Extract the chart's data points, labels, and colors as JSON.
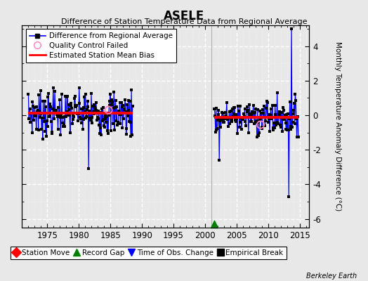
{
  "title": "ASELE",
  "subtitle": "Difference of Station Temperature Data from Regional Average",
  "ylabel": "Monthly Temperature Anomaly Difference (°C)",
  "xlabel_ticks": [
    1975,
    1980,
    1985,
    1990,
    1995,
    2000,
    2005,
    2010,
    2015
  ],
  "ylim": [
    -6.5,
    5.2
  ],
  "yticks": [
    -6,
    -4,
    -2,
    0,
    2,
    4
  ],
  "xlim": [
    1971.0,
    2016.5
  ],
  "bg_color": "#e8e8e8",
  "plot_bg_color": "#e8e8e8",
  "grid_color": "#ffffff",
  "segment1_bias": 0.12,
  "segment2_bias": -0.12,
  "t1_start": 1972.0,
  "t1_end": 1988.5,
  "t2_start": 2001.5,
  "t2_end": 2014.8,
  "record_gap_x": 2001.5,
  "record_gap_y": -6.3,
  "vline_x": 2001.0,
  "vline_color": "#b0b0b0",
  "qc1_x": 1984.7,
  "qc1_y": 0.3,
  "qc2_x": 2008.8,
  "qc2_y": -0.55
}
